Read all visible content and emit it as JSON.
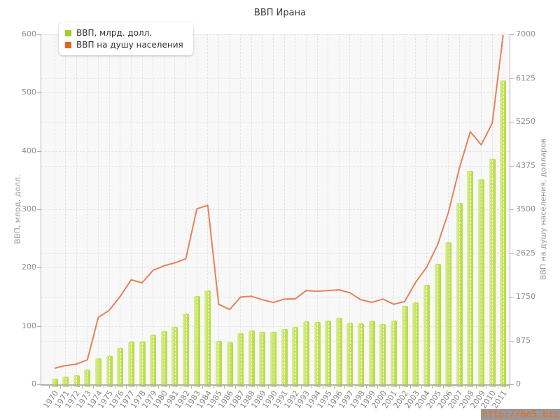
{
  "title": "ВВП Ирана",
  "watermark": "http://be5.biz/",
  "legend": {
    "items": [
      {
        "label": "ВВП, млрд. долл.",
        "color": "#a7cc25"
      },
      {
        "label": "ВВП на душу населения",
        "color": "#e0661f"
      }
    ]
  },
  "chart_data": {
    "type": "bar",
    "subtype": "combo bar + line, dual axis",
    "title": "ВВП Ирана",
    "categories": [
      "1970",
      "1971",
      "1972",
      "1973",
      "1974",
      "1975",
      "1976",
      "1977",
      "1978",
      "1979",
      "1980",
      "1981",
      "1982",
      "1983",
      "1984",
      "1985",
      "1986",
      "1987",
      "1988",
      "1989",
      "1990",
      "1991",
      "1992",
      "1993",
      "1994",
      "1995",
      "1996",
      "1997",
      "1998",
      "1999",
      "2000",
      "2001",
      "2002",
      "2003",
      "2004",
      "2005",
      "2006",
      "2007",
      "2008",
      "2009",
      "2010",
      "2011"
    ],
    "series": [
      {
        "name": "ВВП, млрд. долл.",
        "type": "bar",
        "axis": "left",
        "color": "#c7e35f",
        "values": [
          10,
          13,
          16,
          25,
          44,
          49,
          62,
          73,
          73,
          85,
          91,
          99,
          121,
          151,
          161,
          74,
          72,
          88,
          92,
          90,
          90,
          95,
          99,
          108,
          107,
          109,
          114,
          106,
          104,
          109,
          103,
          109,
          134,
          140,
          171,
          206,
          244,
          311,
          366,
          352,
          386,
          521
        ]
      },
      {
        "name": "ВВП на душу населения",
        "type": "line",
        "axis": "right",
        "color": "#e8805a",
        "values": [
          320,
          375,
          405,
          490,
          1340,
          1480,
          1760,
          2090,
          2030,
          2280,
          2370,
          2430,
          2510,
          3510,
          3580,
          1600,
          1495,
          1745,
          1760,
          1690,
          1635,
          1705,
          1710,
          1875,
          1860,
          1875,
          1890,
          1830,
          1690,
          1640,
          1705,
          1600,
          1655,
          2040,
          2340,
          2785,
          3440,
          4325,
          5050,
          4790,
          5220,
          6990
        ]
      }
    ],
    "left_axis": {
      "label": "ВВП, млрд. долл.",
      "min": 0,
      "max": 600,
      "ticks": [
        0,
        100,
        200,
        300,
        400,
        500,
        600
      ]
    },
    "right_axis": {
      "label": "ВВП на душу населения, долларов",
      "min": 0,
      "max": 7000,
      "ticks": [
        0,
        875,
        1750,
        2625,
        3500,
        4375,
        5250,
        6125,
        7000
      ]
    },
    "grid": true,
    "legend_position": "top-left"
  }
}
